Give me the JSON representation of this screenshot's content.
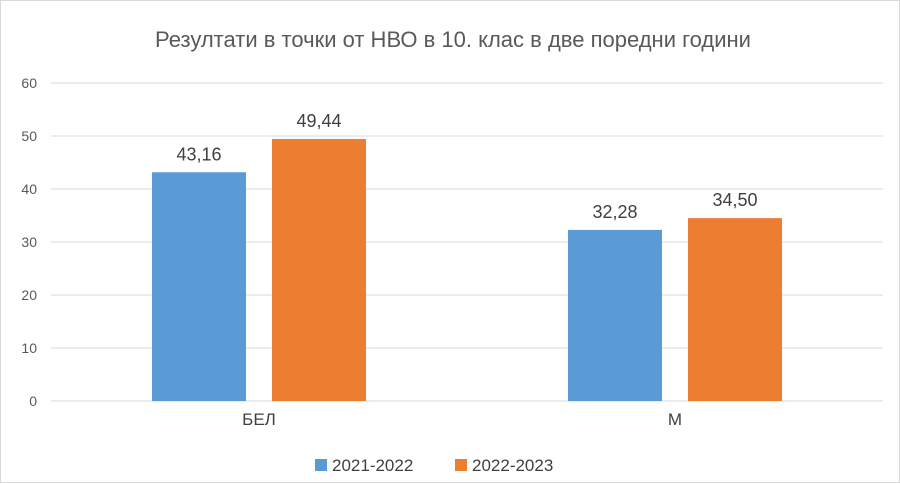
{
  "chart_data": {
    "type": "bar",
    "title": "Резултати в точки от НВО в 10. клас в две поредни години",
    "categories": [
      "БЕЛ",
      "М"
    ],
    "series": [
      {
        "name": "2021-2022",
        "values": [
          43.16,
          32.28
        ],
        "labels": [
          "43,16",
          "32,28"
        ],
        "color": "#5b9bd5"
      },
      {
        "name": "2022-2023",
        "values": [
          49.44,
          34.5
        ],
        "labels": [
          "49,44",
          "34,50"
        ],
        "color": "#ed7d31"
      }
    ],
    "yticks": [
      "0",
      "10",
      "20",
      "30",
      "40",
      "50",
      "60"
    ],
    "ylim": [
      0,
      60
    ],
    "grid": true,
    "legend": "bottom",
    "gridColor": "#d9d9d9"
  }
}
